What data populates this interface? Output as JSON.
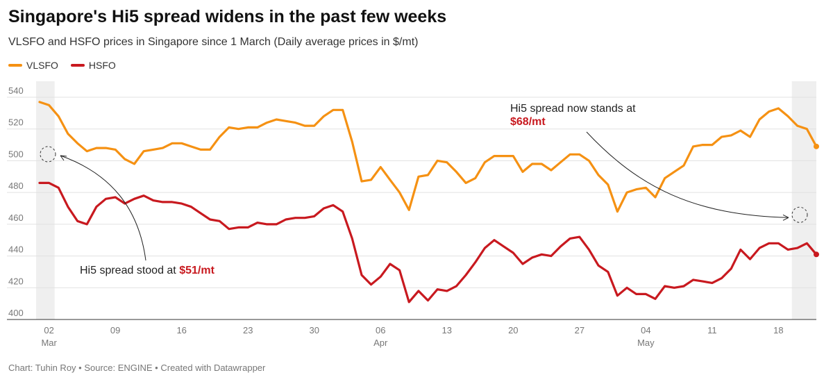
{
  "header": {
    "title": "Singapore's Hi5 spread widens in the past few weeks",
    "subtitle": "VLSFO and HSFO prices in Singapore since 1 March (Daily average prices in $/mt)"
  },
  "footer": {
    "source": "Chart: Tuhin Roy • Source: ENGINE • Created with Datawrapper"
  },
  "colors": {
    "vlsfo": "#f59113",
    "hsfo": "#c8191f",
    "shade": "#efefef",
    "grid": "#e1e1e1"
  },
  "chart_data": {
    "type": "line",
    "ylim": [
      400,
      540
    ],
    "yticks": [
      400,
      420,
      440,
      460,
      480,
      500,
      520,
      540
    ],
    "grid": true,
    "legend_placement": "top-left",
    "x_start": "2024-03-01",
    "x_end": "2024-05-22",
    "xticks": [
      {
        "date": "2024-03-02",
        "day": "02",
        "month": "Mar"
      },
      {
        "date": "2024-03-09",
        "day": "09",
        "month": ""
      },
      {
        "date": "2024-03-16",
        "day": "16",
        "month": ""
      },
      {
        "date": "2024-03-23",
        "day": "23",
        "month": ""
      },
      {
        "date": "2024-03-30",
        "day": "30",
        "month": ""
      },
      {
        "date": "2024-04-06",
        "day": "06",
        "month": "Apr"
      },
      {
        "date": "2024-04-13",
        "day": "13",
        "month": ""
      },
      {
        "date": "2024-04-20",
        "day": "20",
        "month": ""
      },
      {
        "date": "2024-04-27",
        "day": "27",
        "month": ""
      },
      {
        "date": "2024-05-04",
        "day": "04",
        "month": "May"
      },
      {
        "date": "2024-05-11",
        "day": "11",
        "month": ""
      },
      {
        "date": "2024-05-18",
        "day": "18",
        "month": ""
      }
    ],
    "highlight_ranges": [
      {
        "start": "2024-03-01",
        "end": "2024-03-02"
      },
      {
        "start": "2024-05-20",
        "end": "2024-05-22"
      }
    ],
    "series": [
      {
        "name": "VLSFO",
        "color": "#f59113",
        "points": [
          [
            "2024-03-01",
            537
          ],
          [
            "2024-03-02",
            535
          ],
          [
            "2024-03-03",
            528
          ],
          [
            "2024-03-04",
            517
          ],
          [
            "2024-03-05",
            511
          ],
          [
            "2024-03-06",
            506
          ],
          [
            "2024-03-07",
            508
          ],
          [
            "2024-03-08",
            508
          ],
          [
            "2024-03-09",
            507
          ],
          [
            "2024-03-10",
            501
          ],
          [
            "2024-03-11",
            498
          ],
          [
            "2024-03-12",
            506
          ],
          [
            "2024-03-13",
            507
          ],
          [
            "2024-03-14",
            508
          ],
          [
            "2024-03-15",
            511
          ],
          [
            "2024-03-16",
            511
          ],
          [
            "2024-03-17",
            509
          ],
          [
            "2024-03-18",
            507
          ],
          [
            "2024-03-19",
            507
          ],
          [
            "2024-03-20",
            515
          ],
          [
            "2024-03-21",
            521
          ],
          [
            "2024-03-22",
            520
          ],
          [
            "2024-03-23",
            521
          ],
          [
            "2024-03-24",
            521
          ],
          [
            "2024-03-25",
            524
          ],
          [
            "2024-03-26",
            526
          ],
          [
            "2024-03-27",
            525
          ],
          [
            "2024-03-28",
            524
          ],
          [
            "2024-03-29",
            522
          ],
          [
            "2024-03-30",
            522
          ],
          [
            "2024-03-31",
            528
          ],
          [
            "2024-04-01",
            532
          ],
          [
            "2024-04-02",
            532
          ],
          [
            "2024-04-03",
            512
          ],
          [
            "2024-04-04",
            487
          ],
          [
            "2024-04-05",
            488
          ],
          [
            "2024-04-06",
            496
          ],
          [
            "2024-04-07",
            488
          ],
          [
            "2024-04-08",
            480
          ],
          [
            "2024-04-09",
            469
          ],
          [
            "2024-04-10",
            490
          ],
          [
            "2024-04-11",
            491
          ],
          [
            "2024-04-12",
            500
          ],
          [
            "2024-04-13",
            499
          ],
          [
            "2024-04-14",
            493
          ],
          [
            "2024-04-15",
            486
          ],
          [
            "2024-04-16",
            489
          ],
          [
            "2024-04-17",
            499
          ],
          [
            "2024-04-18",
            503
          ],
          [
            "2024-04-19",
            503
          ],
          [
            "2024-04-20",
            503
          ],
          [
            "2024-04-21",
            493
          ],
          [
            "2024-04-22",
            498
          ],
          [
            "2024-04-23",
            498
          ],
          [
            "2024-04-24",
            494
          ],
          [
            "2024-04-25",
            499
          ],
          [
            "2024-04-26",
            504
          ],
          [
            "2024-04-27",
            504
          ],
          [
            "2024-04-28",
            500
          ],
          [
            "2024-04-29",
            491
          ],
          [
            "2024-04-30",
            485
          ],
          [
            "2024-05-01",
            468
          ],
          [
            "2024-05-02",
            480
          ],
          [
            "2024-05-03",
            482
          ],
          [
            "2024-05-04",
            483
          ],
          [
            "2024-05-05",
            477
          ],
          [
            "2024-05-06",
            489
          ],
          [
            "2024-05-07",
            493
          ],
          [
            "2024-05-08",
            497
          ],
          [
            "2024-05-09",
            509
          ],
          [
            "2024-05-10",
            510
          ],
          [
            "2024-05-11",
            510
          ],
          [
            "2024-05-12",
            515
          ],
          [
            "2024-05-13",
            516
          ],
          [
            "2024-05-14",
            519
          ],
          [
            "2024-05-15",
            515
          ],
          [
            "2024-05-16",
            526
          ],
          [
            "2024-05-17",
            531
          ],
          [
            "2024-05-18",
            533
          ],
          [
            "2024-05-19",
            528
          ],
          [
            "2024-05-20",
            522
          ],
          [
            "2024-05-21",
            520
          ],
          [
            "2024-05-22",
            509
          ]
        ]
      },
      {
        "name": "HSFO",
        "color": "#c8191f",
        "points": [
          [
            "2024-03-01",
            486
          ],
          [
            "2024-03-02",
            486
          ],
          [
            "2024-03-03",
            483
          ],
          [
            "2024-03-04",
            471
          ],
          [
            "2024-03-05",
            462
          ],
          [
            "2024-03-06",
            460
          ],
          [
            "2024-03-07",
            471
          ],
          [
            "2024-03-08",
            476
          ],
          [
            "2024-03-09",
            477
          ],
          [
            "2024-03-10",
            473
          ],
          [
            "2024-03-11",
            476
          ],
          [
            "2024-03-12",
            478
          ],
          [
            "2024-03-13",
            475
          ],
          [
            "2024-03-14",
            474
          ],
          [
            "2024-03-15",
            474
          ],
          [
            "2024-03-16",
            473
          ],
          [
            "2024-03-17",
            471
          ],
          [
            "2024-03-18",
            467
          ],
          [
            "2024-03-19",
            463
          ],
          [
            "2024-03-20",
            462
          ],
          [
            "2024-03-21",
            457
          ],
          [
            "2024-03-22",
            458
          ],
          [
            "2024-03-23",
            458
          ],
          [
            "2024-03-24",
            461
          ],
          [
            "2024-03-25",
            460
          ],
          [
            "2024-03-26",
            460
          ],
          [
            "2024-03-27",
            463
          ],
          [
            "2024-03-28",
            464
          ],
          [
            "2024-03-29",
            464
          ],
          [
            "2024-03-30",
            465
          ],
          [
            "2024-03-31",
            470
          ],
          [
            "2024-04-01",
            472
          ],
          [
            "2024-04-02",
            468
          ],
          [
            "2024-04-03",
            451
          ],
          [
            "2024-04-04",
            428
          ],
          [
            "2024-04-05",
            422
          ],
          [
            "2024-04-06",
            427
          ],
          [
            "2024-04-07",
            435
          ],
          [
            "2024-04-08",
            431
          ],
          [
            "2024-04-09",
            411
          ],
          [
            "2024-04-10",
            418
          ],
          [
            "2024-04-11",
            412
          ],
          [
            "2024-04-12",
            419
          ],
          [
            "2024-04-13",
            418
          ],
          [
            "2024-04-14",
            421
          ],
          [
            "2024-04-15",
            428
          ],
          [
            "2024-04-16",
            436
          ],
          [
            "2024-04-17",
            445
          ],
          [
            "2024-04-18",
            450
          ],
          [
            "2024-04-19",
            446
          ],
          [
            "2024-04-20",
            442
          ],
          [
            "2024-04-21",
            435
          ],
          [
            "2024-04-22",
            439
          ],
          [
            "2024-04-23",
            441
          ],
          [
            "2024-04-24",
            440
          ],
          [
            "2024-04-25",
            446
          ],
          [
            "2024-04-26",
            451
          ],
          [
            "2024-04-27",
            452
          ],
          [
            "2024-04-28",
            444
          ],
          [
            "2024-04-29",
            434
          ],
          [
            "2024-04-30",
            430
          ],
          [
            "2024-05-01",
            415
          ],
          [
            "2024-05-02",
            420
          ],
          [
            "2024-05-03",
            416
          ],
          [
            "2024-05-04",
            416
          ],
          [
            "2024-05-05",
            413
          ],
          [
            "2024-05-06",
            421
          ],
          [
            "2024-05-07",
            420
          ],
          [
            "2024-05-08",
            421
          ],
          [
            "2024-05-09",
            425
          ],
          [
            "2024-05-10",
            424
          ],
          [
            "2024-05-11",
            423
          ],
          [
            "2024-05-12",
            426
          ],
          [
            "2024-05-13",
            432
          ],
          [
            "2024-05-14",
            444
          ],
          [
            "2024-05-15",
            438
          ],
          [
            "2024-05-16",
            445
          ],
          [
            "2024-05-17",
            448
          ],
          [
            "2024-05-18",
            448
          ],
          [
            "2024-05-19",
            444
          ],
          [
            "2024-05-20",
            445
          ],
          [
            "2024-05-21",
            448
          ],
          [
            "2024-05-22",
            441
          ]
        ]
      }
    ],
    "annotations": [
      {
        "text": "Hi5 spread stood at ",
        "value": "$51/mt",
        "target_date": "2024-03-01",
        "target_value": 505
      },
      {
        "text": "Hi5 spread now stands at",
        "value": "$68/mt",
        "target_date": "2024-05-22",
        "target_value": 476
      }
    ]
  }
}
